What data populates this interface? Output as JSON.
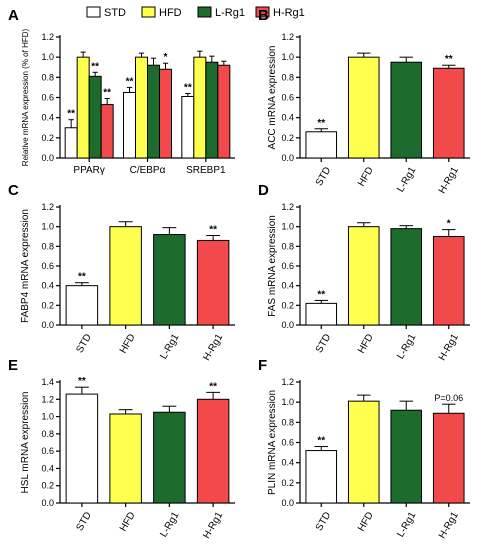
{
  "figure": {
    "legend": [
      {
        "name": "STD",
        "color": "#ffffff"
      },
      {
        "name": "HFD",
        "color": "#ffff4d"
      },
      {
        "name": "L-Rg1",
        "color": "#1e6b2e"
      },
      {
        "name": "H-Rg1",
        "color": "#f24a4a"
      }
    ]
  },
  "chart_data": [
    {
      "panel_letter": "A",
      "type": "bar",
      "ylabel": "Relative mRNA expression (% of HFD)",
      "ylim": [
        0,
        1.2
      ],
      "yticks": [
        "0.0",
        "0.2",
        "0.4",
        "0.6",
        "0.8",
        "1.0",
        "1.2"
      ],
      "categories": [
        "PPARγ",
        "C/EBPα",
        "SREBP1"
      ],
      "series": [
        {
          "name": "STD",
          "color": "#ffffff",
          "values": [
            0.3,
            0.65,
            0.61
          ],
          "errors": [
            0.08,
            0.05,
            0.03
          ],
          "sig": [
            "**",
            "**",
            "**"
          ]
        },
        {
          "name": "HFD",
          "color": "#ffff4d",
          "values": [
            1.0,
            1.0,
            1.0
          ],
          "errors": [
            0.05,
            0.04,
            0.06
          ],
          "sig": [
            "",
            "",
            ""
          ]
        },
        {
          "name": "L-Rg1",
          "color": "#1e6b2e",
          "values": [
            0.81,
            0.92,
            0.95
          ],
          "errors": [
            0.04,
            0.07,
            0.06
          ],
          "sig": [
            "**",
            "",
            ""
          ]
        },
        {
          "name": "H-Rg1",
          "color": "#f24a4a",
          "values": [
            0.53,
            0.88,
            0.92
          ],
          "errors": [
            0.06,
            0.06,
            0.04
          ],
          "sig": [
            "**",
            "*",
            ""
          ]
        }
      ]
    },
    {
      "panel_letter": "B",
      "type": "bar",
      "ylabel": "ACC mRNA expression",
      "ylim": [
        0,
        1.2
      ],
      "yticks": [
        "0.0",
        "0.2",
        "0.4",
        "0.6",
        "0.8",
        "1.0",
        "1.2"
      ],
      "categories": [
        "STD",
        "HFD",
        "L-Rg1",
        "H-Rg1"
      ],
      "colors": [
        "#ffffff",
        "#ffff4d",
        "#1e6b2e",
        "#f24a4a"
      ],
      "values": [
        0.26,
        1.0,
        0.95,
        0.89
      ],
      "errors": [
        0.03,
        0.04,
        0.05,
        0.03
      ],
      "sig": [
        "**",
        "",
        "",
        "**"
      ]
    },
    {
      "panel_letter": "C",
      "type": "bar",
      "ylabel": "FABP4 mRNA expression",
      "ylim": [
        0,
        1.2
      ],
      "yticks": [
        "0.0",
        "0.2",
        "0.4",
        "0.6",
        "0.8",
        "1.0",
        "1.2"
      ],
      "categories": [
        "STD",
        "HFD",
        "L-Rg1",
        "H-Rg1"
      ],
      "colors": [
        "#ffffff",
        "#ffff4d",
        "#1e6b2e",
        "#f24a4a"
      ],
      "values": [
        0.4,
        1.0,
        0.92,
        0.86
      ],
      "errors": [
        0.03,
        0.05,
        0.07,
        0.05
      ],
      "sig": [
        "**",
        "",
        "",
        "**"
      ]
    },
    {
      "panel_letter": "D",
      "type": "bar",
      "ylabel": "FAS mRNA expression",
      "ylim": [
        0,
        1.2
      ],
      "yticks": [
        "0.0",
        "0.2",
        "0.4",
        "0.6",
        "0.8",
        "1.0",
        "1.2"
      ],
      "categories": [
        "STD",
        "HFD",
        "L-Rg1",
        "H-Rg1"
      ],
      "colors": [
        "#ffffff",
        "#ffff4d",
        "#1e6b2e",
        "#f24a4a"
      ],
      "values": [
        0.22,
        1.0,
        0.98,
        0.9
      ],
      "errors": [
        0.03,
        0.04,
        0.03,
        0.07
      ],
      "sig": [
        "**",
        "",
        "",
        "*"
      ]
    },
    {
      "panel_letter": "E",
      "type": "bar",
      "ylabel": "HSL mRNA expression",
      "ylim": [
        0,
        1.4
      ],
      "yticks": [
        "0.0",
        "0.2",
        "0.4",
        "0.6",
        "0.8",
        "1.0",
        "1.2",
        "1.4"
      ],
      "categories": [
        "STD",
        "HFD",
        "L-Rg1",
        "H-Rg1"
      ],
      "colors": [
        "#ffffff",
        "#ffff4d",
        "#1e6b2e",
        "#f24a4a"
      ],
      "values": [
        1.26,
        1.03,
        1.05,
        1.2
      ],
      "errors": [
        0.08,
        0.05,
        0.07,
        0.08
      ],
      "sig": [
        "**",
        "",
        "",
        "**"
      ]
    },
    {
      "panel_letter": "F",
      "type": "bar",
      "ylabel": "PLIN mRNA expression",
      "ylim": [
        0,
        1.2
      ],
      "yticks": [
        "0.0",
        "0.2",
        "0.4",
        "0.6",
        "0.8",
        "1.0",
        "1.2"
      ],
      "categories": [
        "STD",
        "HFD",
        "L-Rg1",
        "H-Rg1"
      ],
      "colors": [
        "#ffffff",
        "#ffff4d",
        "#1e6b2e",
        "#f24a4a"
      ],
      "values": [
        0.52,
        1.01,
        0.92,
        0.89
      ],
      "errors": [
        0.04,
        0.06,
        0.09,
        0.09
      ],
      "sig": [
        "**",
        "",
        "",
        "P=0.06"
      ]
    }
  ]
}
